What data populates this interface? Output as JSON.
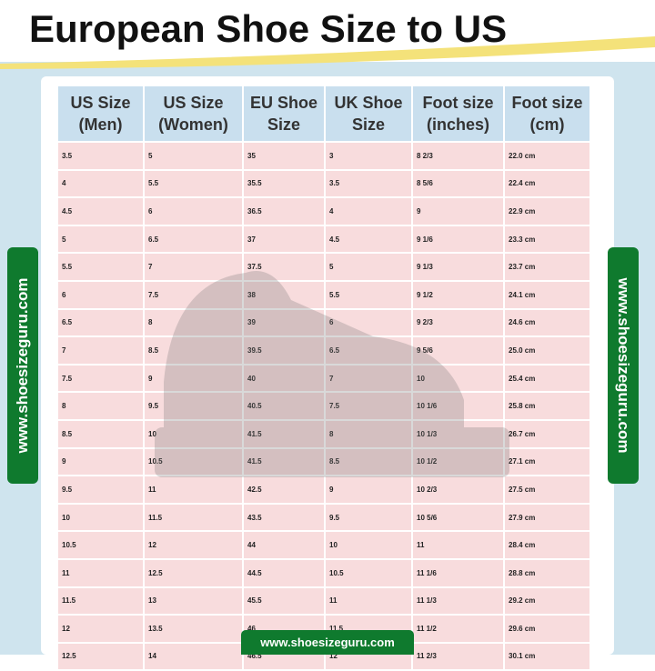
{
  "header": {
    "title": "European Shoe Size to US"
  },
  "watermark": {
    "left": "www.shoesizeguru.com",
    "right": "www.shoesizeguru.com",
    "bottom": "www.shoesizeguru.com"
  },
  "table": {
    "headers": [
      [
        "US Size",
        "(Men)"
      ],
      [
        "US Size",
        "(Women)"
      ],
      [
        "EU Shoe",
        "Size"
      ],
      [
        "UK Shoe",
        "Size"
      ],
      [
        "Foot size",
        "(inches)"
      ],
      [
        "Foot size",
        "(cm)"
      ]
    ],
    "rows": [
      [
        "3.5",
        "5",
        "35",
        "3",
        "8 2/3",
        "22.0 cm"
      ],
      [
        "4",
        "5.5",
        "35.5",
        "3.5",
        "8 5/6",
        "22.4 cm"
      ],
      [
        "4.5",
        "6",
        "36.5",
        "4",
        "9",
        "22.9 cm"
      ],
      [
        "5",
        "6.5",
        "37",
        "4.5",
        "9 1/6",
        "23.3 cm"
      ],
      [
        "5.5",
        "7",
        "37.5",
        "5",
        "9 1/3",
        "23.7 cm"
      ],
      [
        "6",
        "7.5",
        "38",
        "5.5",
        "9 1/2",
        "24.1 cm"
      ],
      [
        "6.5",
        "8",
        "39",
        "6",
        "9 2/3",
        "24.6 cm"
      ],
      [
        "7",
        "8.5",
        "39.5",
        "6.5",
        "9 5/6",
        "25.0 cm"
      ],
      [
        "7.5",
        "9",
        "40",
        "7",
        "10",
        "25.4 cm"
      ],
      [
        "8",
        "9.5",
        "40.5",
        "7.5",
        "10 1/6",
        "25.8 cm"
      ],
      [
        "8.5",
        "10",
        "41.5",
        "8",
        "10 1/3",
        "26.7 cm"
      ],
      [
        "9",
        "10.5",
        "41.5",
        "8.5",
        "10 1/2",
        "27.1 cm"
      ],
      [
        "9.5",
        "11",
        "42.5",
        "9",
        "10 2/3",
        "27.5 cm"
      ],
      [
        "10",
        "11.5",
        "43.5",
        "9.5",
        "10 5/6",
        "27.9 cm"
      ],
      [
        "10.5",
        "12",
        "44",
        "10",
        "11",
        "28.4 cm"
      ],
      [
        "11",
        "12.5",
        "44.5",
        "10.5",
        "11 1/6",
        "28.8 cm"
      ],
      [
        "11.5",
        "13",
        "45.5",
        "11",
        "11 1/3",
        "29.2 cm"
      ],
      [
        "12",
        "13.5",
        "46",
        "11.5",
        "11 1/2",
        "29.6 cm"
      ],
      [
        "12.5",
        "14",
        "46.5",
        "12",
        "11 2/3",
        "30.1 cm"
      ]
    ]
  }
}
